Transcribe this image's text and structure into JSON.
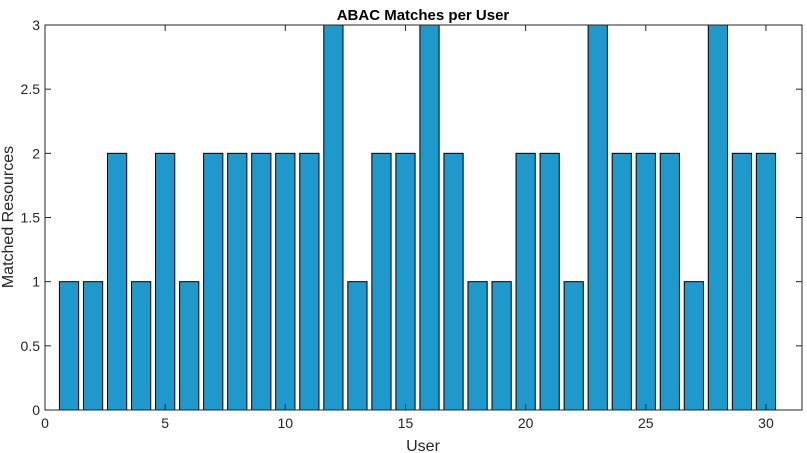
{
  "chart_data": {
    "type": "bar",
    "title": "ABAC Matches per User",
    "xlabel": "User",
    "ylabel": "Matched Resources",
    "categories": [
      1,
      2,
      3,
      4,
      5,
      6,
      7,
      8,
      9,
      10,
      11,
      12,
      13,
      14,
      15,
      16,
      17,
      18,
      19,
      20,
      21,
      22,
      23,
      24,
      25,
      26,
      27,
      28,
      29,
      30
    ],
    "values": [
      1,
      1,
      2,
      1,
      2,
      1,
      2,
      2,
      2,
      2,
      2,
      3,
      1,
      2,
      2,
      3,
      2,
      1,
      1,
      2,
      2,
      1,
      3,
      2,
      2,
      2,
      1,
      3,
      2,
      2
    ],
    "xlim": [
      0,
      31.5
    ],
    "ylim": [
      0,
      3
    ],
    "xticks": [
      0,
      5,
      10,
      15,
      20,
      25,
      30
    ],
    "yticks": [
      0,
      0.5,
      1,
      1.5,
      2,
      2.5,
      3
    ],
    "xtick_labels": [
      "0",
      "5",
      "10",
      "15",
      "20",
      "25",
      "30"
    ],
    "ytick_labels": [
      "0",
      "0.5",
      "1",
      "1.5",
      "2",
      "2.5",
      "3"
    ],
    "grid": false,
    "bar_color": "#1f98cc",
    "edge_color": "#000000"
  }
}
